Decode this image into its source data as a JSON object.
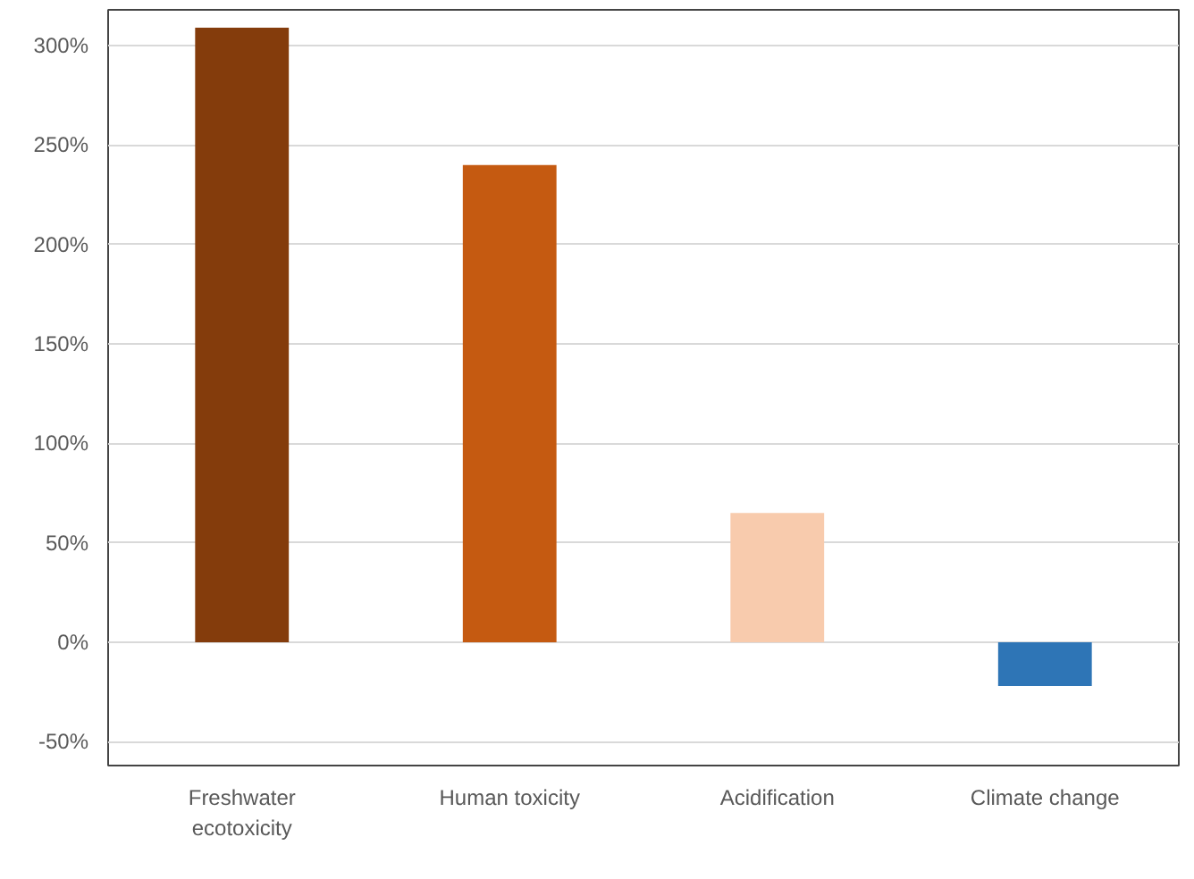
{
  "chart_data": {
    "type": "bar",
    "categories": [
      "Freshwater ecotoxicity",
      "Human toxicity",
      "Acidification",
      "Climate change"
    ],
    "values": [
      309,
      240,
      65,
      -22
    ],
    "colors": [
      "#843c0c",
      "#c55a11",
      "#f8cbad",
      "#2e75b6"
    ],
    "ylim": [
      -62,
      318
    ],
    "yticks": [
      {
        "value": -50,
        "label": "-50%"
      },
      {
        "value": 0,
        "label": "0%"
      },
      {
        "value": 50,
        "label": "50%"
      },
      {
        "value": 100,
        "label": "100%"
      },
      {
        "value": 150,
        "label": "150%"
      },
      {
        "value": 200,
        "label": "200%"
      },
      {
        "value": 250,
        "label": "250%"
      },
      {
        "value": 300,
        "label": "300%"
      }
    ],
    "grid": "y"
  }
}
